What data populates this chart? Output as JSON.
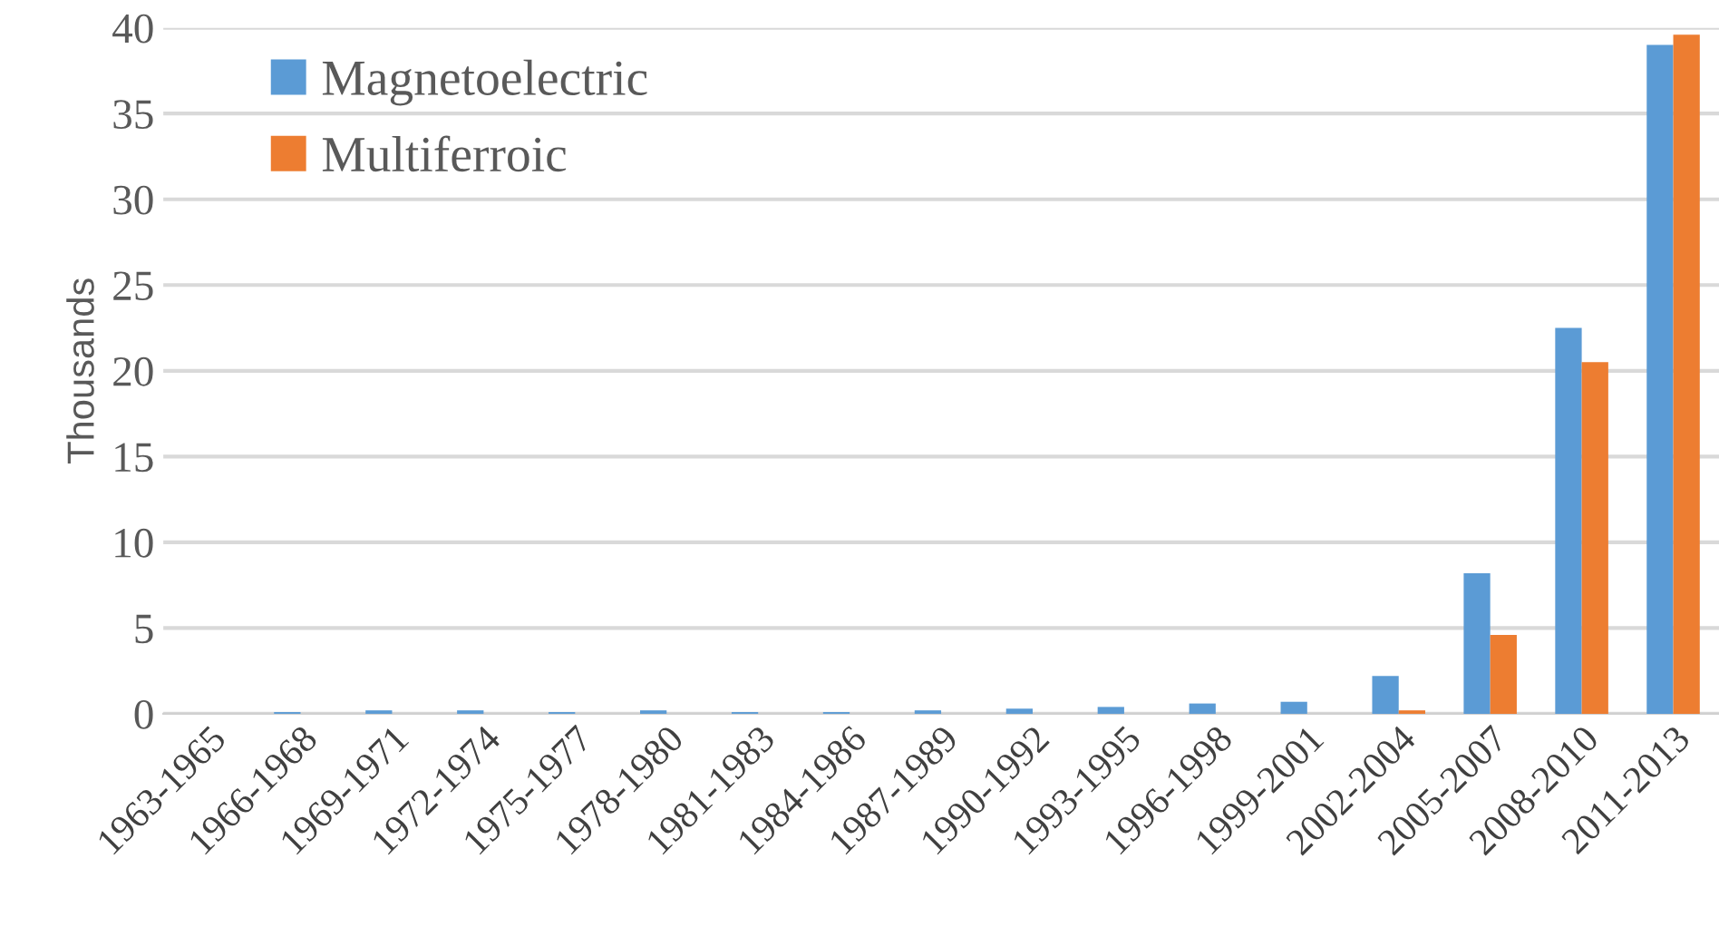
{
  "chart_data": {
    "type": "bar",
    "ylabel": "Thousands",
    "categories": [
      "1963-1965",
      "1966-1968",
      "1969-1971",
      "1972-1974",
      "1975-1977",
      "1978-1980",
      "1981-1983",
      "1984-1986",
      "1987-1989",
      "1990-1992",
      "1993-1995",
      "1996-1998",
      "1999-2001",
      "2002-2004",
      "2005-2007",
      "2008-2010",
      "2011-2013"
    ],
    "series": [
      {
        "name": "Magnetoelectric",
        "color": "#5b9bd5",
        "values": [
          0,
          0.1,
          0.2,
          0.2,
          0.1,
          0.2,
          0.1,
          0.1,
          0.2,
          0.3,
          0.4,
          0.6,
          0.7,
          2.2,
          8.2,
          22.5,
          39.0
        ]
      },
      {
        "name": "Multiferroic",
        "color": "#ed7d31",
        "values": [
          0,
          0,
          0,
          0,
          0,
          0,
          0,
          0,
          0,
          0,
          0,
          0,
          0,
          0.2,
          4.6,
          20.5,
          39.6
        ]
      }
    ],
    "ylim": [
      0,
      40
    ],
    "yticks": [
      0,
      5,
      10,
      15,
      20,
      25,
      30,
      35,
      40
    ],
    "grid": "y",
    "legend": "top left"
  }
}
